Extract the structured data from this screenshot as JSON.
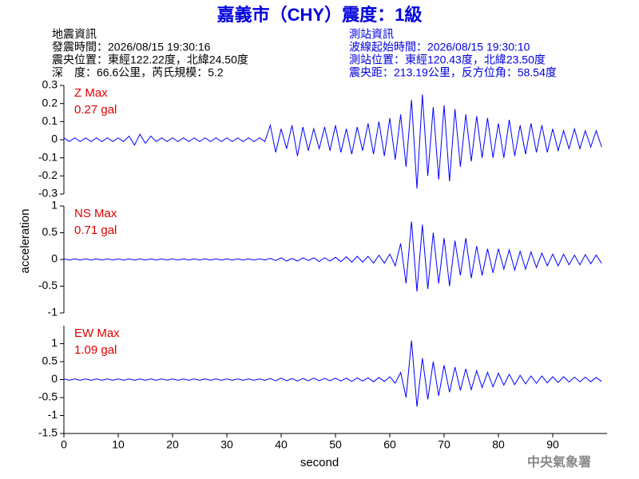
{
  "header": {
    "title": "嘉義市（CHY）震度：1級",
    "left": [
      "地震資訊",
      "發震時間：2026/08/15 19:30:16",
      "震央位置：東經122.22度，北緯24.50度",
      "深　度：66.6公里，芮氏規模：5.2"
    ],
    "right": [
      "測站資訊",
      "波線起始時間：2026/08/15 19:30:10",
      "測站位置：東經120.43度，北緯23.50度",
      "震央距：213.19公里，反方位角：58.54度"
    ],
    "y_label": "acceleration",
    "x_label": "second",
    "footer": "中央氣象署"
  },
  "chart_data": [
    {
      "type": "line",
      "name": "Z Max",
      "max_label": "0.27 gal",
      "color": "#0000ff",
      "xlim": [
        0,
        100
      ],
      "ylim": [
        -0.3,
        0.3
      ],
      "yticks": [
        -0.3,
        -0.2,
        -0.1,
        0,
        0.1,
        0.2,
        0.3
      ],
      "x": [
        0,
        1,
        2,
        3,
        4,
        5,
        6,
        7,
        8,
        9,
        10,
        11,
        12,
        13,
        14,
        15,
        16,
        17,
        18,
        19,
        20,
        21,
        22,
        23,
        24,
        25,
        26,
        27,
        28,
        29,
        30,
        31,
        32,
        33,
        34,
        35,
        36,
        37,
        38,
        39,
        40,
        41,
        42,
        43,
        44,
        45,
        46,
        47,
        48,
        49,
        50,
        51,
        52,
        53,
        54,
        55,
        56,
        57,
        58,
        59,
        60,
        61,
        62,
        63,
        64,
        65,
        66,
        67,
        68,
        69,
        70,
        71,
        72,
        73,
        74,
        75,
        76,
        77,
        78,
        79,
        80,
        81,
        82,
        83,
        84,
        85,
        86,
        87,
        88,
        89,
        90,
        91,
        92,
        93,
        94,
        95,
        96,
        97,
        98,
        99
      ],
      "values": [
        0.01,
        -0.01,
        0.01,
        -0.01,
        0.01,
        -0.01,
        0.01,
        -0.01,
        0.01,
        -0.01,
        0.01,
        -0.01,
        0.02,
        -0.03,
        0.03,
        -0.02,
        0.02,
        -0.01,
        0.01,
        -0.01,
        0.01,
        -0.01,
        0.01,
        -0.01,
        0.01,
        -0.01,
        0.01,
        -0.01,
        0.01,
        -0.01,
        0.01,
        -0.01,
        0.01,
        -0.01,
        0.01,
        -0.01,
        0.01,
        -0.01,
        0.08,
        -0.07,
        0.06,
        -0.05,
        0.08,
        -0.09,
        0.07,
        -0.06,
        0.06,
        -0.05,
        0.07,
        -0.06,
        0.08,
        -0.07,
        0.06,
        -0.08,
        0.07,
        -0.06,
        0.09,
        -0.08,
        0.1,
        -0.09,
        0.12,
        -0.11,
        0.14,
        -0.15,
        0.22,
        -0.27,
        0.25,
        -0.2,
        0.18,
        -0.22,
        0.19,
        -0.23,
        0.17,
        -0.15,
        0.14,
        -0.12,
        0.13,
        -0.1,
        0.12,
        -0.1,
        0.09,
        -0.1,
        0.11,
        -0.09,
        0.08,
        -0.08,
        0.09,
        -0.07,
        0.08,
        -0.07,
        0.06,
        -0.06,
        0.05,
        -0.05,
        0.06,
        -0.05,
        0.05,
        -0.04,
        0.05,
        -0.04
      ]
    },
    {
      "type": "line",
      "name": "NS Max",
      "max_label": "0.71 gal",
      "color": "#0000ff",
      "xlim": [
        0,
        100
      ],
      "ylim": [
        -1,
        1
      ],
      "yticks": [
        -1,
        -0.5,
        0,
        0.5,
        1
      ],
      "x": [
        0,
        1,
        2,
        3,
        4,
        5,
        6,
        7,
        8,
        9,
        10,
        11,
        12,
        13,
        14,
        15,
        16,
        17,
        18,
        19,
        20,
        21,
        22,
        23,
        24,
        25,
        26,
        27,
        28,
        29,
        30,
        31,
        32,
        33,
        34,
        35,
        36,
        37,
        38,
        39,
        40,
        41,
        42,
        43,
        44,
        45,
        46,
        47,
        48,
        49,
        50,
        51,
        52,
        53,
        54,
        55,
        56,
        57,
        58,
        59,
        60,
        61,
        62,
        63,
        64,
        65,
        66,
        67,
        68,
        69,
        70,
        71,
        72,
        73,
        74,
        75,
        76,
        77,
        78,
        79,
        80,
        81,
        82,
        83,
        84,
        85,
        86,
        87,
        88,
        89,
        90,
        91,
        92,
        93,
        94,
        95,
        96,
        97,
        98,
        99
      ],
      "values": [
        0.01,
        -0.01,
        0.01,
        -0.01,
        0.01,
        -0.01,
        0.01,
        -0.01,
        0.01,
        -0.01,
        0.01,
        -0.01,
        0.01,
        -0.01,
        0.01,
        -0.01,
        0.01,
        -0.01,
        0.01,
        -0.01,
        0.01,
        -0.01,
        0.01,
        -0.01,
        0.01,
        -0.01,
        0.01,
        -0.01,
        0.01,
        -0.01,
        0.01,
        -0.01,
        0.01,
        -0.01,
        0.01,
        -0.01,
        0.01,
        -0.01,
        0.02,
        -0.02,
        0.03,
        -0.03,
        0.02,
        -0.03,
        0.03,
        -0.02,
        0.03,
        -0.04,
        0.03,
        -0.03,
        0.04,
        -0.04,
        0.05,
        -0.05,
        0.06,
        -0.05,
        0.06,
        -0.07,
        0.08,
        -0.07,
        0.1,
        -0.12,
        0.3,
        -0.45,
        0.71,
        -0.6,
        0.65,
        -0.55,
        0.5,
        -0.45,
        0.4,
        -0.5,
        0.35,
        -0.3,
        0.4,
        -0.35,
        0.25,
        -0.3,
        0.2,
        -0.25,
        0.2,
        -0.18,
        0.18,
        -0.2,
        0.15,
        -0.18,
        0.14,
        -0.15,
        0.12,
        -0.12,
        0.1,
        -0.12,
        0.1,
        -0.1,
        0.08,
        -0.1,
        0.09,
        -0.08,
        0.08,
        -0.07
      ]
    },
    {
      "type": "line",
      "name": "EW Max",
      "max_label": "1.09 gal",
      "color": "#0000ff",
      "xlim": [
        0,
        100
      ],
      "ylim": [
        -1.5,
        1.5
      ],
      "yticks": [
        -1.5,
        -1,
        -0.5,
        0,
        0.5,
        1
      ],
      "xticks": [
        0,
        10,
        20,
        30,
        40,
        50,
        60,
        70,
        80,
        90
      ],
      "x": [
        0,
        1,
        2,
        3,
        4,
        5,
        6,
        7,
        8,
        9,
        10,
        11,
        12,
        13,
        14,
        15,
        16,
        17,
        18,
        19,
        20,
        21,
        22,
        23,
        24,
        25,
        26,
        27,
        28,
        29,
        30,
        31,
        32,
        33,
        34,
        35,
        36,
        37,
        38,
        39,
        40,
        41,
        42,
        43,
        44,
        45,
        46,
        47,
        48,
        49,
        50,
        51,
        52,
        53,
        54,
        55,
        56,
        57,
        58,
        59,
        60,
        61,
        62,
        63,
        64,
        65,
        66,
        67,
        68,
        69,
        70,
        71,
        72,
        73,
        74,
        75,
        76,
        77,
        78,
        79,
        80,
        81,
        82,
        83,
        84,
        85,
        86,
        87,
        88,
        89,
        90,
        91,
        92,
        93,
        94,
        95,
        96,
        97,
        98,
        99
      ],
      "values": [
        0.02,
        -0.02,
        0.02,
        -0.02,
        0.02,
        -0.02,
        0.02,
        -0.02,
        0.02,
        -0.02,
        0.02,
        -0.02,
        0.02,
        -0.02,
        0.02,
        -0.02,
        0.02,
        -0.02,
        0.02,
        -0.02,
        0.02,
        -0.02,
        0.02,
        -0.02,
        0.02,
        -0.02,
        0.02,
        -0.02,
        0.02,
        -0.02,
        0.02,
        -0.02,
        0.02,
        -0.02,
        0.02,
        -0.02,
        0.02,
        -0.02,
        0.03,
        -0.03,
        0.04,
        -0.03,
        0.03,
        -0.04,
        0.03,
        -0.03,
        0.04,
        -0.03,
        0.03,
        -0.03,
        0.04,
        -0.04,
        0.04,
        -0.05,
        0.05,
        -0.04,
        0.05,
        -0.06,
        0.06,
        -0.05,
        0.08,
        -0.1,
        0.2,
        -0.5,
        1.09,
        -0.75,
        0.6,
        -0.55,
        0.5,
        -0.45,
        0.4,
        -0.35,
        0.35,
        -0.3,
        0.3,
        -0.28,
        0.25,
        -0.22,
        0.2,
        -0.2,
        0.18,
        -0.15,
        0.15,
        -0.14,
        0.12,
        -0.12,
        0.1,
        -0.1,
        0.1,
        -0.09,
        0.08,
        -0.08,
        0.08,
        -0.07,
        0.07,
        -0.06,
        0.07,
        -0.06,
        0.06,
        -0.05
      ]
    }
  ]
}
